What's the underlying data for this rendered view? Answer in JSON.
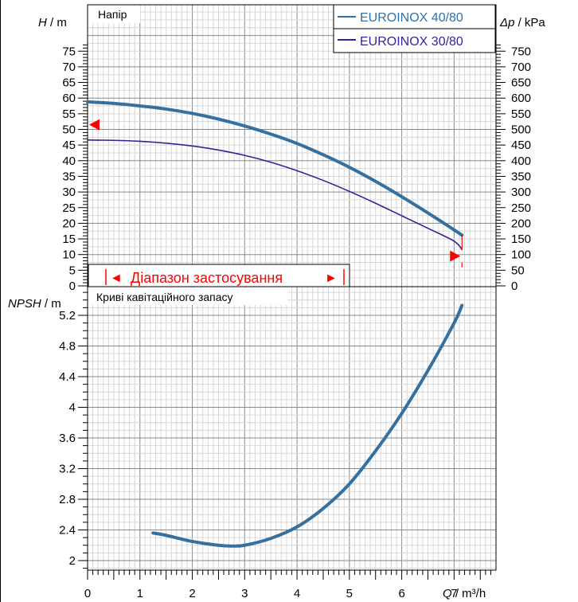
{
  "colors": {
    "series_4080": "#3470a0",
    "series_3080": "#3a1e96",
    "range": "#ff0000",
    "grid_minor": "#d6d6d6",
    "grid_major": "#8a8a8a",
    "text": "#000000"
  },
  "chart_data": [
    {
      "type": "line",
      "title": "Напір",
      "ylabel_var": "H",
      "ylabel_unit": " / m",
      "y2label_var": "Δp",
      "y2label_unit": " / kPa",
      "xlim": [
        0,
        7.8
      ],
      "ylim": [
        0,
        78
      ],
      "y2lim": [
        0,
        780
      ],
      "yticks": [
        0,
        5,
        10,
        15,
        20,
        25,
        30,
        35,
        40,
        45,
        50,
        55,
        60,
        65,
        70,
        75
      ],
      "y2ticks": [
        0,
        50,
        100,
        150,
        200,
        250,
        300,
        350,
        400,
        450,
        500,
        550,
        600,
        650,
        700,
        750
      ],
      "legend_position": "top-right",
      "series": [
        {
          "name": "EUROINOX 40/80",
          "color": "#3470a0",
          "width": 4,
          "x": [
            0,
            0.5,
            1,
            1.5,
            2,
            2.5,
            3,
            3.5,
            4,
            4.5,
            5,
            5.5,
            6,
            6.5,
            7,
            7.15
          ],
          "y": [
            58.8,
            58.3,
            57.5,
            56.5,
            55.1,
            53.3,
            51.1,
            48.5,
            45.5,
            41.9,
            37.9,
            33.4,
            28.5,
            23.3,
            17.9,
            16.2
          ]
        },
        {
          "name": "EUROINOX 30/80",
          "color": "#3a1e96",
          "width": 1.6,
          "x": [
            0,
            0.5,
            1,
            1.5,
            2,
            2.5,
            3,
            3.5,
            4,
            4.5,
            5,
            5.5,
            6,
            6.5,
            7,
            7.15
          ],
          "y": [
            46.6,
            46.5,
            46.2,
            45.6,
            44.7,
            43.4,
            41.7,
            39.5,
            36.8,
            33.7,
            30.2,
            26.4,
            22.4,
            18.4,
            14.3,
            11.6
          ]
        }
      ],
      "operating_range": {
        "label": "Діапазон застосування",
        "marker_left": "◄",
        "marker_right": "►",
        "start_x": 0,
        "end_x": 7.15,
        "start_y": 51.5,
        "end_y": 9.5
      }
    },
    {
      "type": "line",
      "title": "Криві кавітаційного запасу",
      "ylabel_var": "NPSH",
      "ylabel_unit": " / m",
      "xlabel_var": "Q",
      "xlabel_unit": " / m³/h",
      "xlim": [
        0,
        7.8
      ],
      "xticks": [
        0,
        1,
        2,
        3,
        4,
        5,
        6,
        7
      ],
      "ylim": [
        1.9,
        5.45
      ],
      "yticks": [
        2,
        2.4,
        2.8,
        3.2,
        3.6,
        4,
        4.4,
        4.8,
        5.2
      ],
      "series": [
        {
          "color": "#3470a0",
          "width": 4,
          "x": [
            1.25,
            1.5,
            2,
            2.5,
            2.75,
            3,
            3.5,
            4,
            4.5,
            5,
            5.5,
            6,
            6.5,
            7,
            7.15
          ],
          "y": [
            2.36,
            2.33,
            2.25,
            2.2,
            2.19,
            2.2,
            2.29,
            2.44,
            2.68,
            3.0,
            3.43,
            3.92,
            4.48,
            5.1,
            5.33
          ]
        }
      ]
    }
  ]
}
